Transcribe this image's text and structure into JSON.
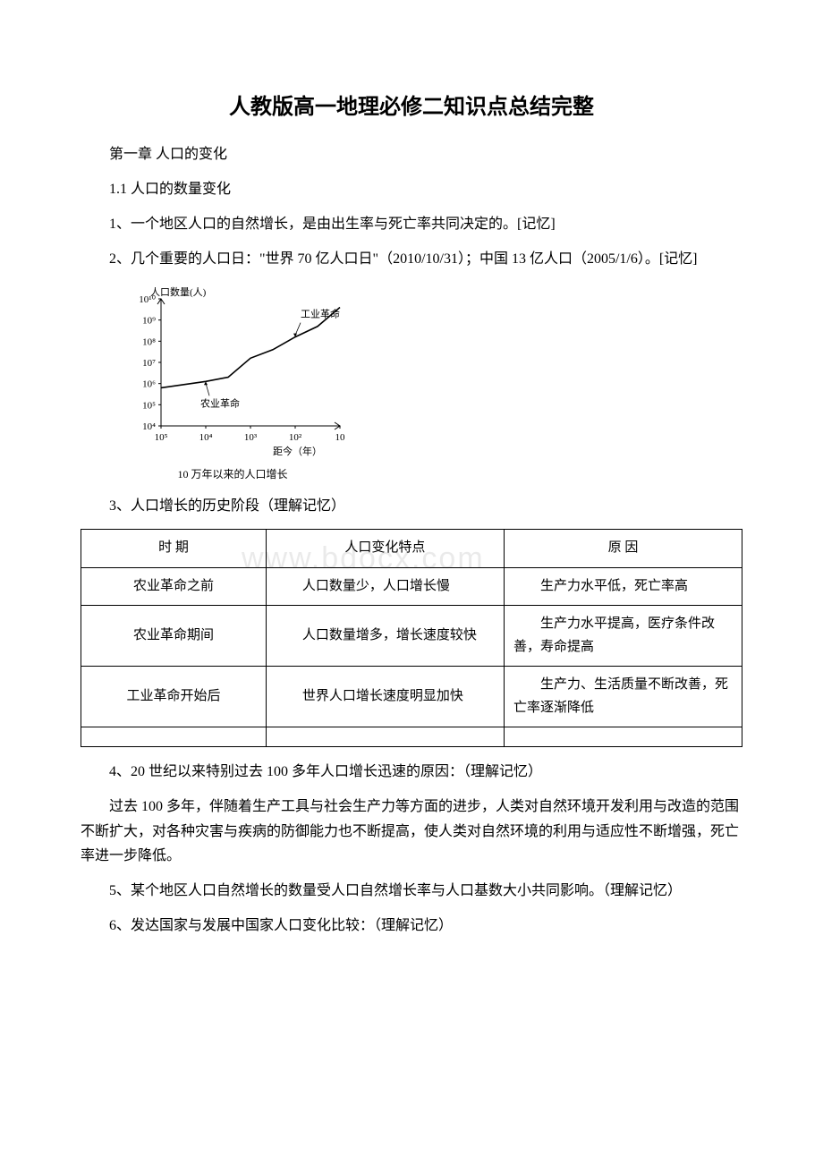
{
  "title": "人教版高一地理必修二知识点总结完整",
  "section1": "第一章 人口的变化",
  "section1_1": "1.1 人口的数量变化",
  "p1": "1、一个地区人口的自然增长，是由出生率与死亡率共同决定的。[记忆]",
  "p2": "2、几个重要的人口日：\"世界 70 亿人口日\"（2010/10/31）；中国 13 亿人口（2005/1/6）。[记忆]",
  "chart": {
    "type": "line-log",
    "background_color": "#ffffff",
    "axis_color": "#000000",
    "line_color": "#000000",
    "font_size": 11,
    "y_label": "人口数量(人)",
    "y_ticks": [
      "10⁴",
      "10⁵",
      "10⁶",
      "10⁷",
      "10⁸",
      "10⁹",
      "10¹⁰"
    ],
    "x_label": "距今（年）",
    "x_ticks": [
      "10⁵",
      "10⁴",
      "10³",
      "10²",
      "10"
    ],
    "annotations": {
      "agriculture": "农业革命",
      "industry": "工业革命"
    },
    "caption": "10 万年以来的人口增长",
    "path_points": [
      [
        0,
        5.8
      ],
      [
        1,
        6.1
      ],
      [
        1.5,
        6.3
      ],
      [
        2,
        7.2
      ],
      [
        2.5,
        7.6
      ],
      [
        3,
        8.2
      ],
      [
        3.5,
        8.7
      ],
      [
        4,
        9.6
      ]
    ],
    "xlim": [
      0,
      4
    ],
    "ylim": [
      4,
      10
    ]
  },
  "p3": "3、人口增长的历史阶段（理解记忆）",
  "table": {
    "header": [
      "时  期",
      "人口变化特点",
      "原  因"
    ],
    "rows": [
      [
        "农业革命之前",
        "人口数量少，人口增长慢",
        "生产力水平低，死亡率高"
      ],
      [
        "农业革命期间",
        "人口数量增多，增长速度较快",
        "生产力水平提高，医疗条件改善，寿命提高"
      ],
      [
        "工业革命开始后",
        "世界人口增长速度明显加快",
        "生产力、生活质量不断改善，死亡率逐渐降低"
      ],
      [
        "",
        "",
        ""
      ]
    ]
  },
  "p4": "4、20 世纪以来特别过去 100 多年人口增长迅速的原因：（理解记忆）",
  "p5": "过去 100 多年，伴随着生产工具与社会生产力等方面的进步，人类对自然环境开发利用与改造的范围不断扩大，对各种灾害与疾病的防御能力也不断提高，使人类对自然环境的利用与适应性不断增强，死亡率进一步降低。",
  "p6": "5、某个地区人口自然增长的数量受人口自然增长率与人口基数大小共同影响。（理解记忆）",
  "p7": "6、发达国家与发展中国家人口变化比较：（理解记忆）",
  "watermark": "www.bdocx.com"
}
